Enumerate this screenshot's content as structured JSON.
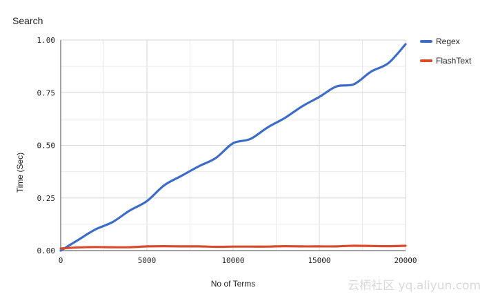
{
  "chart_data": {
    "type": "line",
    "title": "Search",
    "xlabel": "No of Terms",
    "ylabel": "Time (Sec)",
    "xlim": [
      0,
      20000
    ],
    "ylim": [
      0,
      1
    ],
    "x_ticks": [
      "0",
      "5000",
      "10000",
      "15000",
      "20000"
    ],
    "y_ticks": [
      "0.00",
      "0.25",
      "0.50",
      "0.75",
      "1.00"
    ],
    "grid": true,
    "legend_position": "right",
    "series": [
      {
        "name": "Regex",
        "color": "#3d6cc8",
        "x": [
          0,
          1000,
          2000,
          3000,
          4000,
          5000,
          6000,
          7000,
          8000,
          9000,
          10000,
          11000,
          12000,
          13000,
          14000,
          15000,
          16000,
          17000,
          18000,
          19000,
          20000
        ],
        "y": [
          0.0,
          0.05,
          0.1,
          0.135,
          0.19,
          0.235,
          0.31,
          0.355,
          0.4,
          0.44,
          0.51,
          0.53,
          0.585,
          0.63,
          0.685,
          0.73,
          0.78,
          0.79,
          0.85,
          0.89,
          0.98
        ]
      },
      {
        "name": "FlashText",
        "color": "#d94b2b",
        "x": [
          0,
          1000,
          2000,
          3000,
          4000,
          5000,
          6000,
          7000,
          8000,
          9000,
          10000,
          11000,
          12000,
          13000,
          14000,
          15000,
          16000,
          17000,
          18000,
          19000,
          20000
        ],
        "y": [
          0.01,
          0.015,
          0.017,
          0.016,
          0.016,
          0.02,
          0.021,
          0.02,
          0.02,
          0.018,
          0.019,
          0.019,
          0.019,
          0.021,
          0.02,
          0.02,
          0.02,
          0.023,
          0.022,
          0.021,
          0.023
        ]
      }
    ]
  },
  "watermark": "云栖社区 yq.aliyun.com"
}
